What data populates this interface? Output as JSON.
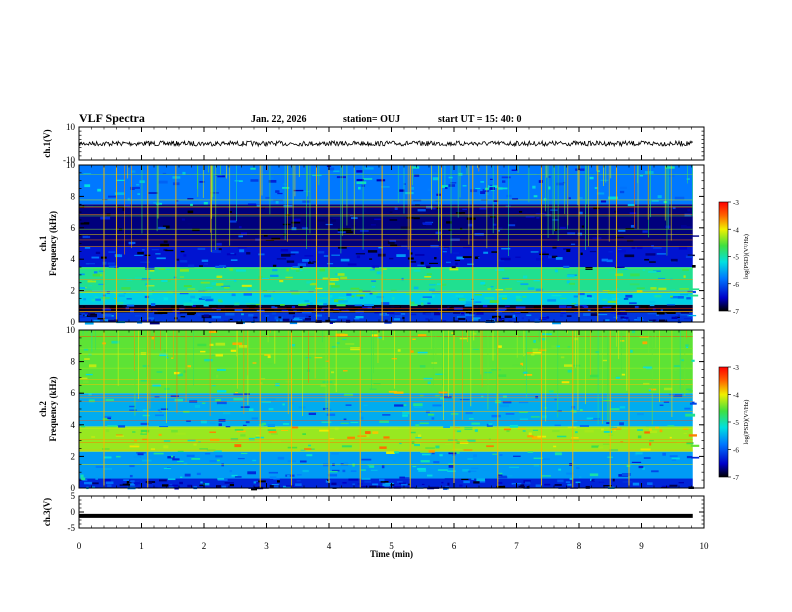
{
  "header": {
    "title": "VLF Spectra",
    "date": "Jan. 22, 2026",
    "station": "station= OUJ",
    "start": "start  UT =  15: 40: 0"
  },
  "chart_data": [
    {
      "type": "line",
      "panel": "ch1-waveform",
      "ylabel": "ch.1(V)",
      "xlim": [
        0,
        10
      ],
      "ylim": [
        -10,
        10
      ],
      "yticks": [
        10,
        -10
      ],
      "x": [
        0,
        9.82
      ],
      "y": [
        0,
        0
      ]
    },
    {
      "type": "heatmap",
      "panel": "ch1-spectrogram",
      "ylabel": "ch.1\nFrequency  (kHz)",
      "xlim": [
        0,
        10
      ],
      "ylim": [
        0,
        10
      ],
      "yticks": [
        0,
        2,
        4,
        6,
        8,
        10
      ],
      "x_extent_min": 9.82,
      "colorbar": {
        "label": "log(PSD)(V²/Hz)",
        "range": [
          -7,
          -3
        ],
        "ticks": [
          -3,
          -4,
          -5,
          -6,
          -7
        ]
      },
      "bands": [
        {
          "from": 0,
          "to": 0.6,
          "level": -6.2
        },
        {
          "from": 0.6,
          "to": 1.1,
          "level": -6.9
        },
        {
          "from": 1.1,
          "to": 2.0,
          "level": -5.3
        },
        {
          "from": 2.0,
          "to": 3.5,
          "level": -4.9
        },
        {
          "from": 3.5,
          "to": 4.8,
          "level": -6.4
        },
        {
          "from": 4.8,
          "to": 7.5,
          "level": -6.7
        },
        {
          "from": 7.5,
          "to": 10,
          "level": -5.8
        }
      ],
      "spikes": [
        0.4,
        0.6,
        1.1,
        1.55,
        2.9,
        3.8,
        4.0,
        4.85,
        5.3,
        5.8,
        6.3,
        6.7,
        7.4,
        8.0,
        8.3,
        8.6
      ]
    },
    {
      "type": "heatmap",
      "panel": "ch2-spectrogram",
      "ylabel": "ch.2\nFrequency  (kHz)",
      "xlim": [
        0,
        10
      ],
      "ylim": [
        0,
        10
      ],
      "yticks": [
        0,
        2,
        4,
        6,
        8,
        10
      ],
      "x_extent_min": 9.82,
      "colorbar": {
        "label": "log(PSD)(V²/Hz)",
        "range": [
          -7,
          -3
        ],
        "ticks": [
          -3,
          -4,
          -5,
          -6,
          -7
        ]
      },
      "bands": [
        {
          "from": 0,
          "to": 0.6,
          "level": -6.3
        },
        {
          "from": 0.6,
          "to": 2.3,
          "level": -5.6
        },
        {
          "from": 2.3,
          "to": 3.9,
          "level": -4.3
        },
        {
          "from": 3.9,
          "to": 6.0,
          "level": -5.5
        },
        {
          "from": 6.0,
          "to": 10,
          "level": -4.5
        }
      ],
      "spikes": [
        0.4,
        1.1,
        2.9,
        3.4,
        4.0,
        4.5,
        5.3,
        6.0,
        6.7,
        7.4,
        7.9,
        8.5,
        8.8
      ]
    },
    {
      "type": "line",
      "panel": "ch3-waveform",
      "ylabel": "ch.3(V)",
      "xlabel": "Time  (min)",
      "xlim": [
        0,
        10
      ],
      "ylim": [
        -5,
        5
      ],
      "yticks": [
        5,
        0,
        -5
      ],
      "xticks": [
        0,
        1,
        2,
        3,
        4,
        5,
        6,
        7,
        8,
        9,
        10
      ],
      "x": [
        0,
        9.82
      ],
      "y": [
        -1.2,
        -1.2
      ]
    }
  ]
}
